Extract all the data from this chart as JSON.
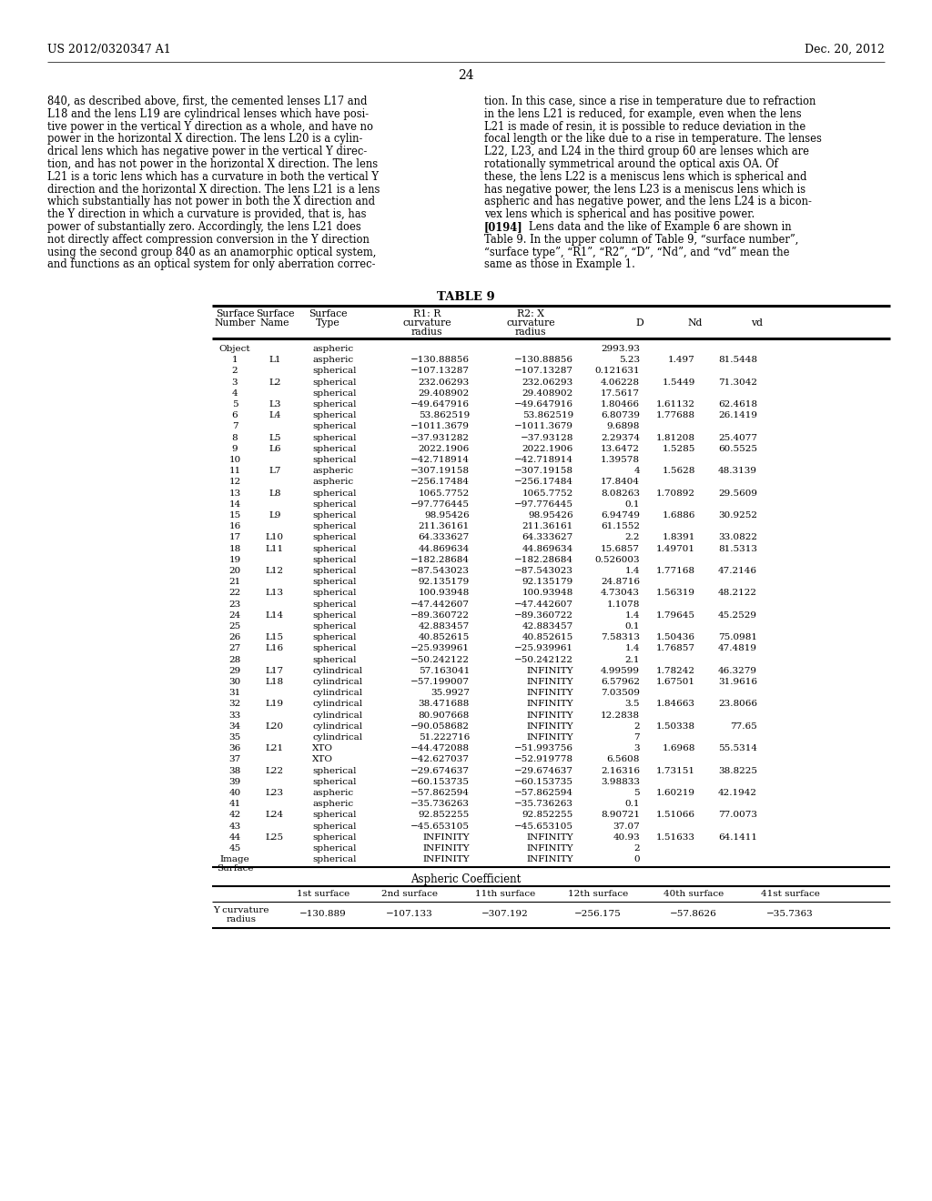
{
  "header_left": "US 2012/0320347 A1",
  "header_right": "Dec. 20, 2012",
  "page_number": "24",
  "body_text_left": [
    "840, as described above, first, the cemented lenses L17 and",
    "L18 and the lens L19 are cylindrical lenses which have posi-",
    "tive power in the vertical Y direction as a whole, and have no",
    "power in the horizontal X direction. The lens L20 is a cylin-",
    "drical lens which has negative power in the vertical Y direc-",
    "tion, and has not power in the horizontal X direction. The lens",
    "L21 is a toric lens which has a curvature in both the vertical Y",
    "direction and the horizontal X direction. The lens L21 is a lens",
    "which substantially has not power in both the X direction and",
    "the Y direction in which a curvature is provided, that is, has",
    "power of substantially zero. Accordingly, the lens L21 does",
    "not directly affect compression conversion in the Y direction",
    "using the second group 840 as an anamorphic optical system,",
    "and functions as an optical system for only aberration correc-"
  ],
  "body_text_right": [
    "tion. In this case, since a rise in temperature due to refraction",
    "in the lens L21 is reduced, for example, even when the lens",
    "L21 is made of resin, it is possible to reduce deviation in the",
    "focal length or the like due to a rise in temperature. The lenses",
    "L22, L23, and L24 in the third group 60 are lenses which are",
    "rotationally symmetrical around the optical axis OA. Of",
    "these, the lens L22 is a meniscus lens which is spherical and",
    "has negative power, the lens L23 is a meniscus lens which is",
    "aspheric and has negative power, and the lens L24 is a bicon-",
    "vex lens which is spherical and has positive power.",
    "[0194]   Lens data and the like of Example 6 are shown in",
    "Table 9. In the upper column of Table 9, “surface number”,",
    "“surface type”, “R1”, “R2”, “D”, “Nd”, and “vd” mean the",
    "same as those in Example 1."
  ],
  "table_title": "TABLE 9",
  "col_headers": [
    [
      "Surface",
      "Number"
    ],
    [
      "Surface",
      "Name"
    ],
    [
      "Surface",
      "Type"
    ],
    [
      "R1: R",
      "curvature",
      "radius"
    ],
    [
      "R2: X",
      "curvature",
      "radius"
    ],
    [
      "D"
    ],
    [
      "Nd"
    ],
    [
      "vd"
    ]
  ],
  "table_rows": [
    [
      "Object",
      "",
      "aspheric",
      "",
      "",
      "2993.93",
      "",
      ""
    ],
    [
      "1",
      "L1",
      "aspheric",
      "−130.88856",
      "−130.88856",
      "5.23",
      "1.497",
      "81.5448"
    ],
    [
      "2",
      "",
      "spherical",
      "−107.13287",
      "−107.13287",
      "0.121631",
      "",
      ""
    ],
    [
      "3",
      "L2",
      "spherical",
      "232.06293",
      "232.06293",
      "4.06228",
      "1.5449",
      "71.3042"
    ],
    [
      "4",
      "",
      "spherical",
      "29.408902",
      "29.408902",
      "17.5617",
      "",
      ""
    ],
    [
      "5",
      "L3",
      "spherical",
      "−49.647916",
      "−49.647916",
      "1.80466",
      "1.61132",
      "62.4618"
    ],
    [
      "6",
      "L4",
      "spherical",
      "53.862519",
      "53.862519",
      "6.80739",
      "1.77688",
      "26.1419"
    ],
    [
      "7",
      "",
      "spherical",
      "−1011.3679",
      "−1011.3679",
      "9.6898",
      "",
      ""
    ],
    [
      "8",
      "L5",
      "spherical",
      "−37.931282",
      "−37.93128",
      "2.29374",
      "1.81208",
      "25.4077"
    ],
    [
      "9",
      "L6",
      "spherical",
      "2022.1906",
      "2022.1906",
      "13.6472",
      "1.5285",
      "60.5525"
    ],
    [
      "10",
      "",
      "spherical",
      "−42.718914",
      "−42.718914",
      "1.39578",
      "",
      ""
    ],
    [
      "11",
      "L7",
      "aspheric",
      "−307.19158",
      "−307.19158",
      "4",
      "1.5628",
      "48.3139"
    ],
    [
      "12",
      "",
      "aspheric",
      "−256.17484",
      "−256.17484",
      "17.8404",
      "",
      ""
    ],
    [
      "13",
      "L8",
      "spherical",
      "1065.7752",
      "1065.7752",
      "8.08263",
      "1.70892",
      "29.5609"
    ],
    [
      "14",
      "",
      "spherical",
      "−97.776445",
      "−97.776445",
      "0.1",
      "",
      ""
    ],
    [
      "15",
      "L9",
      "spherical",
      "98.95426",
      "98.95426",
      "6.94749",
      "1.6886",
      "30.9252"
    ],
    [
      "16",
      "",
      "spherical",
      "211.36161",
      "211.36161",
      "61.1552",
      "",
      ""
    ],
    [
      "17",
      "L10",
      "spherical",
      "64.333627",
      "64.333627",
      "2.2",
      "1.8391",
      "33.0822"
    ],
    [
      "18",
      "L11",
      "spherical",
      "44.869634",
      "44.869634",
      "15.6857",
      "1.49701",
      "81.5313"
    ],
    [
      "19",
      "",
      "spherical",
      "−182.28684",
      "−182.28684",
      "0.526003",
      "",
      ""
    ],
    [
      "20",
      "L12",
      "spherical",
      "−87.543023",
      "−87.543023",
      "1.4",
      "1.77168",
      "47.2146"
    ],
    [
      "21",
      "",
      "spherical",
      "92.135179",
      "92.135179",
      "24.8716",
      "",
      ""
    ],
    [
      "22",
      "L13",
      "spherical",
      "100.93948",
      "100.93948",
      "4.73043",
      "1.56319",
      "48.2122"
    ],
    [
      "23",
      "",
      "spherical",
      "−47.442607",
      "−47.442607",
      "1.1078",
      "",
      ""
    ],
    [
      "24",
      "L14",
      "spherical",
      "−89.360722",
      "−89.360722",
      "1.4",
      "1.79645",
      "45.2529"
    ],
    [
      "25",
      "",
      "spherical",
      "42.883457",
      "42.883457",
      "0.1",
      "",
      ""
    ],
    [
      "26",
      "L15",
      "spherical",
      "40.852615",
      "40.852615",
      "7.58313",
      "1.50436",
      "75.0981"
    ],
    [
      "27",
      "L16",
      "spherical",
      "−25.939961",
      "−25.939961",
      "1.4",
      "1.76857",
      "47.4819"
    ],
    [
      "28",
      "",
      "spherical",
      "−50.242122",
      "−50.242122",
      "2.1",
      "",
      ""
    ],
    [
      "29",
      "L17",
      "cylindrical",
      "57.163041",
      "INFINITY",
      "4.99599",
      "1.78242",
      "46.3279"
    ],
    [
      "30",
      "L18",
      "cylindrical",
      "−57.199007",
      "INFINITY",
      "6.57962",
      "1.67501",
      "31.9616"
    ],
    [
      "31",
      "",
      "cylindrical",
      "35.9927",
      "INFINITY",
      "7.03509",
      "",
      ""
    ],
    [
      "32",
      "L19",
      "cylindrical",
      "38.471688",
      "INFINITY",
      "3.5",
      "1.84663",
      "23.8066"
    ],
    [
      "33",
      "",
      "cylindrical",
      "80.907668",
      "INFINITY",
      "12.2838",
      "",
      ""
    ],
    [
      "34",
      "L20",
      "cylindrical",
      "−90.058682",
      "INFINITY",
      "2",
      "1.50338",
      "77.65"
    ],
    [
      "35",
      "",
      "cylindrical",
      "51.222716",
      "INFINITY",
      "7",
      "",
      ""
    ],
    [
      "36",
      "L21",
      "XTO",
      "−44.472088",
      "−51.993756",
      "3",
      "1.6968",
      "55.5314"
    ],
    [
      "37",
      "",
      "XTO",
      "−42.627037",
      "−52.919778",
      "6.5608",
      "",
      ""
    ],
    [
      "38",
      "L22",
      "spherical",
      "−29.674637",
      "−29.674637",
      "2.16316",
      "1.73151",
      "38.8225"
    ],
    [
      "39",
      "",
      "spherical",
      "−60.153735",
      "−60.153735",
      "3.98833",
      "",
      ""
    ],
    [
      "40",
      "L23",
      "aspheric",
      "−57.862594",
      "−57.862594",
      "5",
      "1.60219",
      "42.1942"
    ],
    [
      "41",
      "",
      "aspheric",
      "−35.736263",
      "−35.736263",
      "0.1",
      "",
      ""
    ],
    [
      "42",
      "L24",
      "spherical",
      "92.852255",
      "92.852255",
      "8.90721",
      "1.51066",
      "77.0073"
    ],
    [
      "43",
      "",
      "spherical",
      "−45.653105",
      "−45.653105",
      "37.07",
      "",
      ""
    ],
    [
      "44",
      "L25",
      "spherical",
      "INFINITY",
      "INFINITY",
      "40.93",
      "1.51633",
      "64.1411"
    ],
    [
      "45",
      "",
      "spherical",
      "INFINITY",
      "INFINITY",
      "2",
      "",
      ""
    ],
    [
      "Image",
      "",
      "spherical",
      "INFINITY",
      "INFINITY",
      "0",
      "",
      ""
    ]
  ],
  "image_surface_label": "Surface",
  "aspheric_title": "Aspheric Coefficient",
  "aspheric_col_headers": [
    "",
    "1st surface",
    "2nd surface",
    "11th surface",
    "12th surface",
    "40th surface",
    "41st surface"
  ],
  "aspheric_rows": [
    [
      "Y curvature",
      "radius",
      "−130.889",
      "−107.133",
      "−307.192",
      "−256.175",
      "−57.8626",
      "−35.7363"
    ]
  ]
}
